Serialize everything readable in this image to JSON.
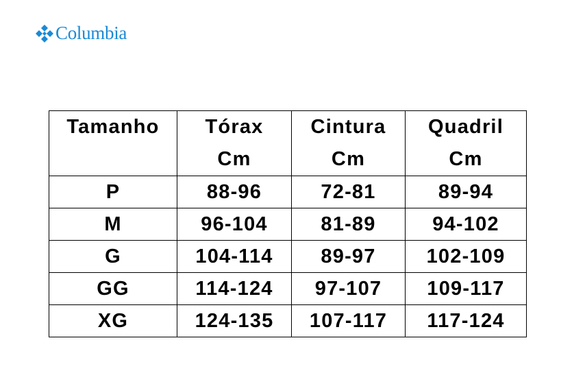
{
  "brand": {
    "name": "Columbia",
    "color": "#1a8ad4",
    "icon": "columbia-diamond-logo"
  },
  "table": {
    "headers": [
      {
        "line1": "Tamanho",
        "line2": ""
      },
      {
        "line1": "Tórax",
        "line2": "Cm"
      },
      {
        "line1": "Cintura",
        "line2": "Cm"
      },
      {
        "line1": "Quadril",
        "line2": "Cm"
      }
    ],
    "rows": [
      [
        "P",
        "88-96",
        "72-81",
        "89-94"
      ],
      [
        "M",
        "96-104",
        "81-89",
        "94-102"
      ],
      [
        "G",
        "104-114",
        "89-97",
        "102-109"
      ],
      [
        "GG",
        "114-124",
        "97-107",
        "109-117"
      ],
      [
        "XG",
        "124-135",
        "107-117",
        "117-124"
      ]
    ]
  }
}
